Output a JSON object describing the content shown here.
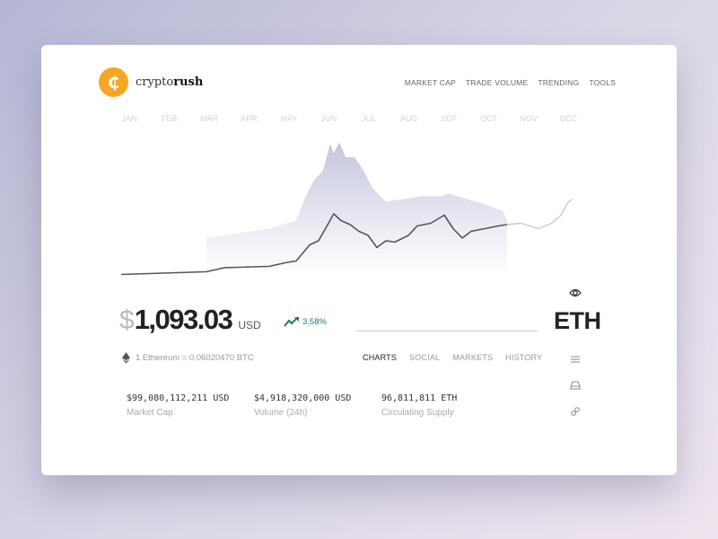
{
  "brand": {
    "name_light": "crypto",
    "name_bold": "rush",
    "logo_glyph": "₵",
    "color": "#f5a623"
  },
  "nav": [
    "MARKET CAP",
    "TRADE VOLUME",
    "TRENDING",
    "TOOLS"
  ],
  "chart_data": {
    "type": "area",
    "x_labels": [
      "JAN",
      "FEB",
      "MAR",
      "APR",
      "MAY",
      "JUN",
      "JUL",
      "AUG",
      "SEP",
      "OCT",
      "NOV",
      "DEC"
    ],
    "price_series": [
      [
        -0.2,
        1
      ],
      [
        1.93,
        3
      ],
      [
        2.38,
        6
      ],
      [
        3.5,
        7
      ],
      [
        3.96,
        10
      ],
      [
        4.18,
        11
      ],
      [
        4.52,
        23
      ],
      [
        4.74,
        26
      ],
      [
        4.97,
        38
      ],
      [
        5.12,
        46
      ],
      [
        5.3,
        41
      ],
      [
        5.53,
        38
      ],
      [
        5.75,
        33
      ],
      [
        5.98,
        30
      ],
      [
        6.2,
        21
      ],
      [
        6.43,
        26
      ],
      [
        6.65,
        25
      ],
      [
        6.99,
        30
      ],
      [
        7.21,
        37
      ],
      [
        7.55,
        39
      ],
      [
        7.89,
        45
      ],
      [
        8.11,
        35
      ],
      [
        8.34,
        28
      ],
      [
        8.56,
        33
      ],
      [
        8.9,
        35
      ],
      [
        9.24,
        37
      ],
      [
        9.46,
        38
      ]
    ],
    "projection_series": [
      [
        9.46,
        38
      ],
      [
        9.8,
        39
      ],
      [
        10.25,
        35
      ],
      [
        10.58,
        39
      ],
      [
        10.81,
        45
      ],
      [
        10.97,
        54
      ],
      [
        11.1,
        57
      ]
    ],
    "volume_area": [
      [
        1.93,
        28
      ],
      [
        2.6,
        31
      ],
      [
        3.5,
        35
      ],
      [
        4.18,
        41
      ],
      [
        4.4,
        58
      ],
      [
        4.63,
        71
      ],
      [
        4.85,
        78
      ],
      [
        5.03,
        98
      ],
      [
        5.12,
        91
      ],
      [
        5.26,
        99
      ],
      [
        5.42,
        88
      ],
      [
        5.64,
        88
      ],
      [
        5.87,
        78
      ],
      [
        6.09,
        65
      ],
      [
        6.43,
        55
      ],
      [
        6.88,
        57
      ],
      [
        7.33,
        59
      ],
      [
        7.78,
        59
      ],
      [
        8,
        61
      ],
      [
        8.45,
        57
      ],
      [
        8.9,
        53
      ],
      [
        9.35,
        48
      ],
      [
        9.46,
        41
      ]
    ],
    "line_color": "#55555f",
    "area_color": "#c9cae0"
  },
  "price": {
    "currency_symbol": "$",
    "value": "1,093.03",
    "unit": "USD",
    "change": "3.58%",
    "change_color": "#1f7a6a"
  },
  "ticker": "ETH",
  "rate": "1 Ethereum = 0.06020470 BTC",
  "tabs": [
    "CHARTS",
    "SOCIAL",
    "MARKETS",
    "HISTORY"
  ],
  "active_tab": "CHARTS",
  "stats": [
    {
      "value": "$99,080,112,211 USD",
      "label": "Market Cap"
    },
    {
      "value": "$4,918,320,000 USD",
      "label": "Volume (24h)"
    },
    {
      "value": "96,811,811 ETH",
      "label": "Circulating Supply"
    }
  ],
  "side_icons": [
    "eye-icon",
    "list-icon",
    "inbox-icon",
    "link-icon"
  ]
}
